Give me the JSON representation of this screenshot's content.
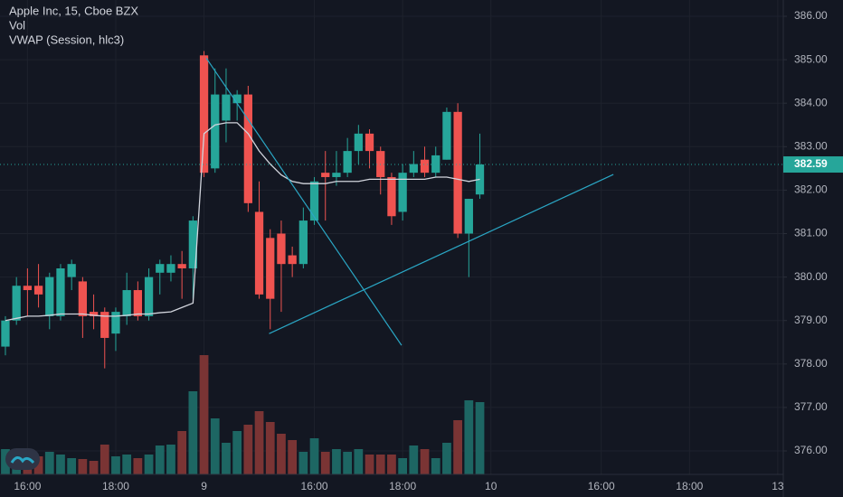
{
  "chart_data": {
    "type": "candlestick",
    "title": "Apple Inc, 15, Cboe BZX",
    "indicators": [
      "Vol",
      "VWAP (Session, hlc3)"
    ],
    "open": [
      378.4,
      379.0,
      379.8,
      379.8,
      379.1,
      379.1,
      380.0,
      379.9,
      379.2,
      379.2,
      378.7,
      379.1,
      379.7,
      379.1,
      380.1,
      380.1,
      380.3,
      380.2,
      385.1,
      382.5,
      383.6,
      384.0,
      384.2,
      381.5,
      380.9,
      381.0,
      380.5,
      380.3,
      381.3,
      382.4,
      382.3,
      382.4,
      382.9,
      383.3,
      382.9,
      382.3,
      381.5,
      382.4,
      382.7,
      382.4,
      382.7,
      383.8,
      381.0,
      381.9
    ],
    "high": [
      379.1,
      380.0,
      380.2,
      380.3,
      380.1,
      380.3,
      380.4,
      380.0,
      379.6,
      379.3,
      379.3,
      380.1,
      379.9,
      380.2,
      380.4,
      380.5,
      380.6,
      381.4,
      385.2,
      384.8,
      384.8,
      384.3,
      384.4,
      382.2,
      381.1,
      381.3,
      380.7,
      381.6,
      382.3,
      382.9,
      382.9,
      383.2,
      383.5,
      383.4,
      383.0,
      382.4,
      382.6,
      382.9,
      383.0,
      383.0,
      383.9,
      384.0,
      381.8,
      383.3
    ],
    "low": [
      378.2,
      378.9,
      379.1,
      379.3,
      378.8,
      379.0,
      379.7,
      378.6,
      378.8,
      377.9,
      378.3,
      378.9,
      379.0,
      379.0,
      379.6,
      379.9,
      379.5,
      379.5,
      382.3,
      382.4,
      383.1,
      383.6,
      381.5,
      379.5,
      378.8,
      379.2,
      380.0,
      380.2,
      381.2,
      381.3,
      382.1,
      382.3,
      382.6,
      382.5,
      381.9,
      381.2,
      381.3,
      382.3,
      382.3,
      382.3,
      382.7,
      380.9,
      380.0,
      381.8
    ],
    "close": [
      379.0,
      379.8,
      379.7,
      379.6,
      380.0,
      380.2,
      380.3,
      379.1,
      379.1,
      378.6,
      379.2,
      379.7,
      379.1,
      380.0,
      380.3,
      380.3,
      380.2,
      381.3,
      382.4,
      384.2,
      384.2,
      384.2,
      381.7,
      379.6,
      379.5,
      380.3,
      380.3,
      381.3,
      382.2,
      382.3,
      382.4,
      382.9,
      383.3,
      382.9,
      382.3,
      381.4,
      382.4,
      382.6,
      382.4,
      382.8,
      383.8,
      381.0,
      381.8,
      382.59
    ],
    "volume": [
      28,
      25,
      22,
      20,
      25,
      22,
      18,
      17,
      15,
      33,
      20,
      22,
      18,
      22,
      32,
      33,
      48,
      92,
      132,
      62,
      35,
      48,
      55,
      70,
      58,
      45,
      38,
      25,
      40,
      25,
      28,
      25,
      28,
      22,
      22,
      22,
      18,
      32,
      28,
      18,
      35,
      60,
      82,
      80
    ],
    "vwap": {
      "color": "#d1d4dc",
      "values": [
        379.0,
        379.05,
        379.1,
        379.1,
        379.12,
        379.15,
        379.15,
        379.15,
        379.12,
        379.1,
        379.1,
        379.12,
        379.15,
        379.15,
        379.18,
        379.2,
        379.3,
        379.4,
        383.3,
        383.5,
        383.55,
        383.55,
        383.3,
        382.9,
        382.6,
        382.35,
        382.2,
        382.15,
        382.15,
        382.15,
        382.2,
        382.2,
        382.2,
        382.25,
        382.25,
        382.25,
        382.25,
        382.25,
        382.25,
        382.3,
        382.3,
        382.25,
        382.2,
        382.25
      ]
    },
    "up_color": "#26a69a",
    "down_color": "#ef5350",
    "volume_up_color": "#1d6663",
    "volume_down_color": "#7a3434",
    "drawings": [
      {
        "color": "#2aa6c4",
        "x": [
          18.2,
          35.9
        ],
        "y": [
          385.04,
          378.43
        ]
      },
      {
        "color": "#2aa6c4",
        "x": [
          23.9,
          55.1
        ],
        "y": [
          378.7,
          382.36
        ]
      }
    ],
    "last_price": 382.59,
    "ylim": [
      375.46,
      386.374
    ],
    "yticks": [
      {
        "value": 376,
        "label": "376.00"
      },
      {
        "value": 377,
        "label": "377.00"
      },
      {
        "value": 378,
        "label": "378.00"
      },
      {
        "value": 379,
        "label": "379.00"
      },
      {
        "value": 380,
        "label": "380.00"
      },
      {
        "value": 381,
        "label": "381.00"
      },
      {
        "value": 382,
        "label": "382.00"
      },
      {
        "value": 383,
        "label": "383.00"
      },
      {
        "value": 384,
        "label": "384.00"
      },
      {
        "value": 385,
        "label": "385.00"
      },
      {
        "value": 386,
        "label": "386.00"
      }
    ],
    "xlim": [
      -0.49,
      70.5
    ],
    "xticks": [
      {
        "value": 2,
        "label": "16:00"
      },
      {
        "value": 10,
        "label": "18:00"
      },
      {
        "value": 18,
        "label": "9"
      },
      {
        "value": 28,
        "label": "16:00"
      },
      {
        "value": 36,
        "label": "18:00"
      },
      {
        "value": 44,
        "label": "10"
      },
      {
        "value": 54,
        "label": "16:00"
      },
      {
        "value": 62,
        "label": "18:00"
      },
      {
        "value": 70,
        "label": "13"
      }
    ],
    "grid": true
  }
}
